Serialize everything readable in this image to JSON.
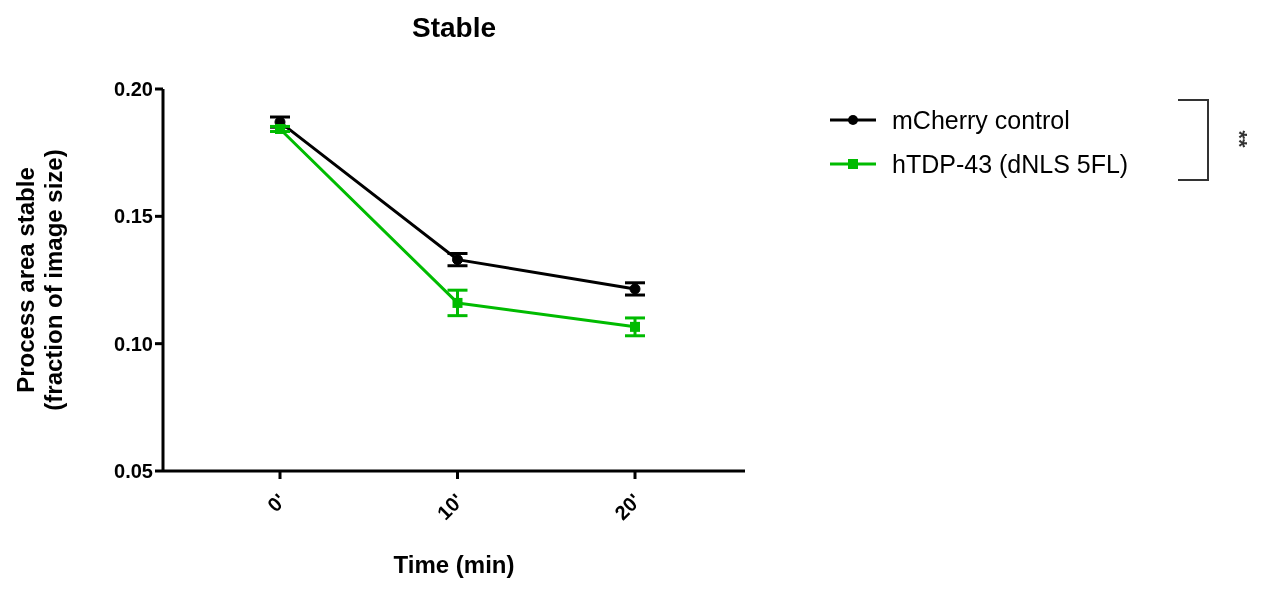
{
  "chart_data": {
    "type": "line",
    "title": "Stable",
    "xlabel": "Time (min)",
    "ylabel": "Process area stable\n(fraction of image size)",
    "categories": [
      "0'",
      "10'",
      "20'"
    ],
    "series": [
      {
        "name": "mCherry control",
        "color": "#000000",
        "marker": "circle",
        "values": [
          0.187,
          0.133,
          0.1215
        ],
        "errors": [
          0.002,
          0.0024,
          0.0024
        ]
      },
      {
        "name": "hTDP-43 (dNLS 5FL)",
        "color": "#00bb00",
        "marker": "square",
        "values": [
          0.1843,
          0.116,
          0.1066
        ],
        "errors": [
          0.001,
          0.005,
          0.0035
        ]
      }
    ],
    "ylim": [
      0.05,
      0.2
    ],
    "yticks": [
      {
        "value": 0.05,
        "label": "0.05"
      },
      {
        "value": 0.1,
        "label": "0.10"
      },
      {
        "value": 0.15,
        "label": "0.15"
      },
      {
        "value": 0.2,
        "label": "0.20"
      }
    ],
    "grid": false,
    "legend": "top right",
    "line_style": "solid",
    "annotations": [
      "**"
    ]
  }
}
